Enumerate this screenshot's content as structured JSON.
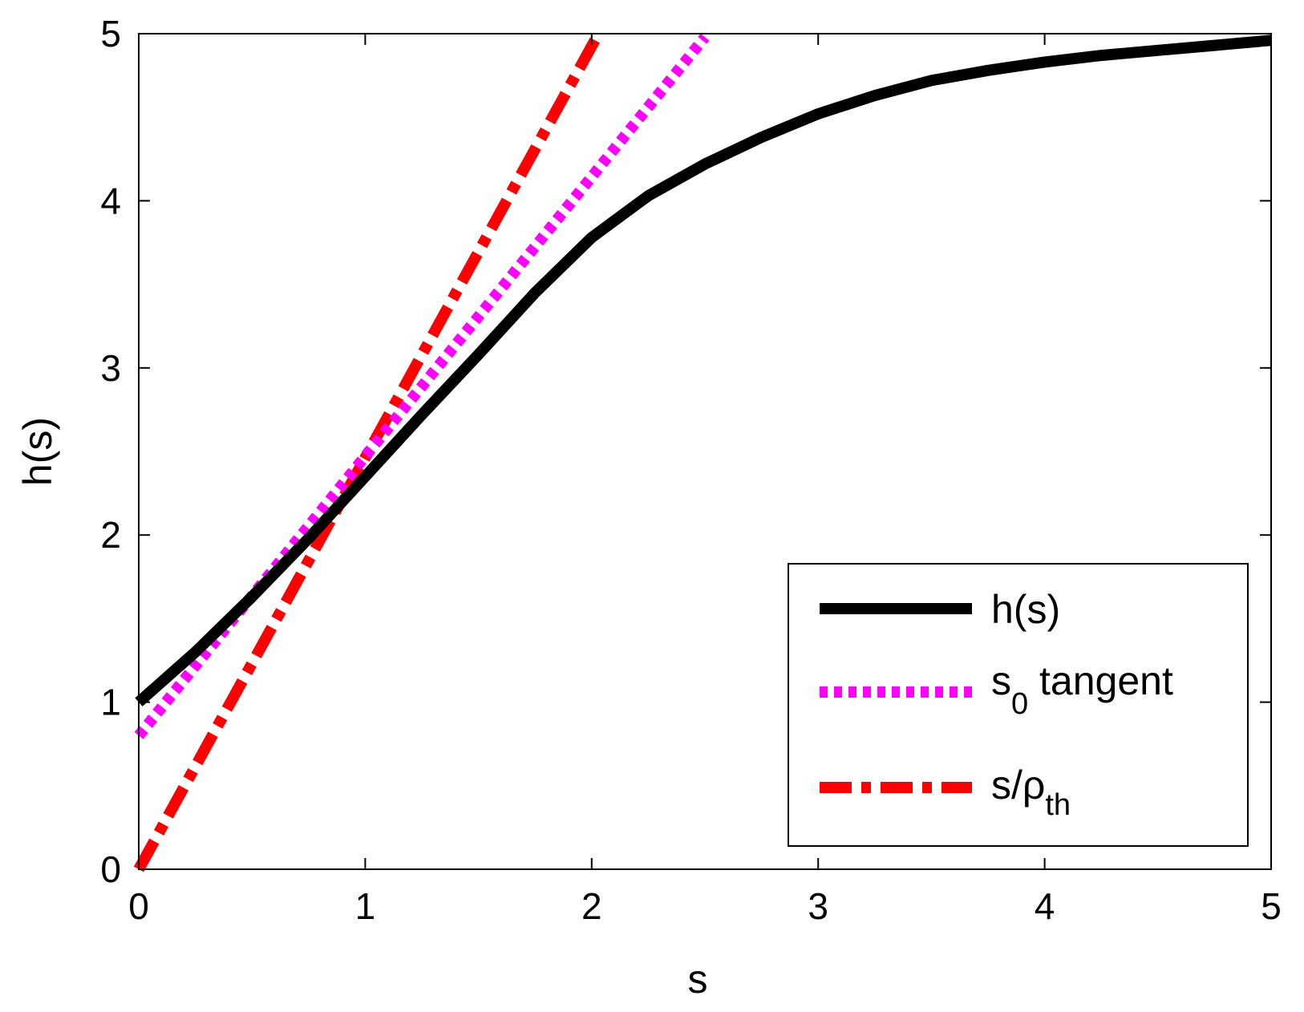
{
  "chart_data": {
    "type": "line",
    "title": "",
    "xlabel": "s",
    "ylabel": "h(s)",
    "xlim": [
      0,
      5
    ],
    "ylim": [
      0,
      5
    ],
    "xticks": [
      "0",
      "1",
      "2",
      "3",
      "4",
      "5"
    ],
    "yticks": [
      "0",
      "1",
      "2",
      "3",
      "4",
      "5"
    ],
    "grid": false,
    "legend_position": "bottom-right",
    "series": [
      {
        "name": "h(s)",
        "style": "solid",
        "color": "#000000",
        "x": [
          0,
          0.25,
          0.5,
          0.75,
          1.0,
          1.25,
          1.5,
          1.75,
          2.0,
          2.25,
          2.5,
          2.75,
          3.0,
          3.25,
          3.5,
          3.75,
          4.0,
          4.25,
          4.5,
          4.75,
          5.0
        ],
        "y": [
          1.0,
          1.3,
          1.63,
          1.98,
          2.35,
          2.72,
          3.08,
          3.45,
          3.78,
          4.03,
          4.22,
          4.38,
          4.52,
          4.63,
          4.72,
          4.78,
          4.83,
          4.87,
          4.9,
          4.93,
          4.96
        ]
      },
      {
        "name": "s_0 tangent",
        "legend_main": "s",
        "legend_sub": "0",
        "legend_rest": " tangent",
        "style": "dotted",
        "color": "#ff00ff",
        "x": [
          0,
          2.5
        ],
        "y": [
          0.8,
          4.98
        ]
      },
      {
        "name": "s/ρ_th",
        "legend_main": "s/ρ",
        "legend_sub": "th",
        "style": "dashdot",
        "color": "#ff0000",
        "x": [
          0,
          2.03
        ],
        "y": [
          0,
          5.0
        ]
      }
    ]
  }
}
